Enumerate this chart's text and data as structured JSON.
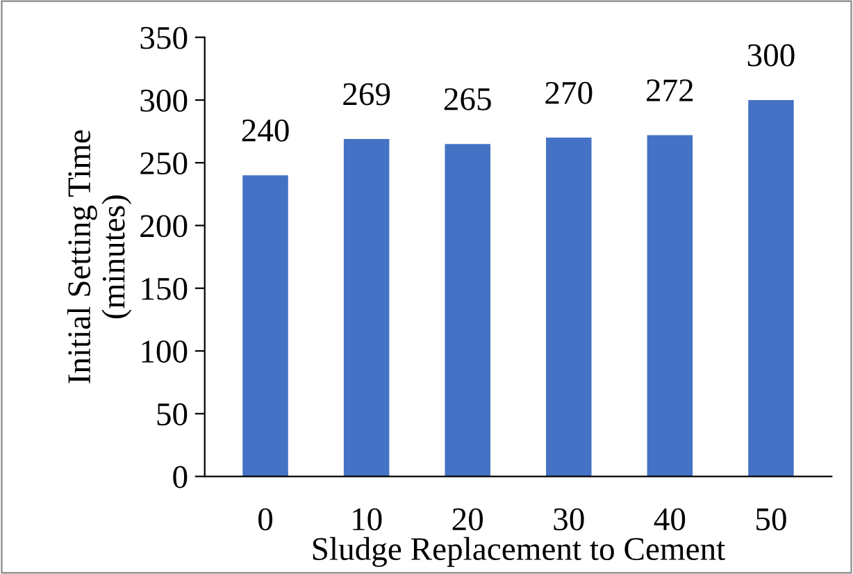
{
  "chart_data": {
    "type": "bar",
    "xlabel": "Sludge Replacement to Cement",
    "ylabel": "Initial Setting Time\n(minutes)",
    "categories": [
      "0",
      "10",
      "20",
      "30",
      "40",
      "50"
    ],
    "values": [
      240,
      269,
      265,
      270,
      272,
      300
    ],
    "color": "#4472c4",
    "ylim": [
      0,
      350
    ],
    "yticks": [
      0,
      50,
      100,
      150,
      200,
      250,
      300,
      350
    ],
    "grid": false,
    "legend": false,
    "data_labels": true
  }
}
